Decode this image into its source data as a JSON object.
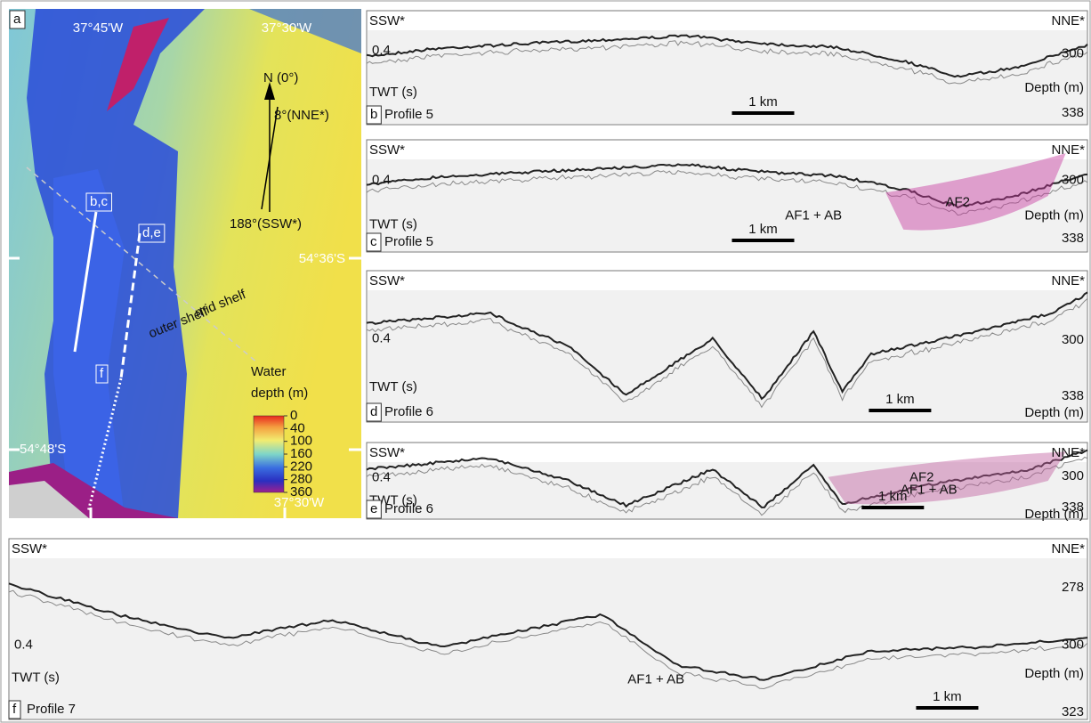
{
  "map": {
    "panel": "a",
    "lon_top": [
      "37°45'W",
      "37°30'W"
    ],
    "north": "N (0°)",
    "nne": "8°(NNE*)",
    "ssw": "188°(SSW*)",
    "track_labels": [
      "b,c",
      "d,e",
      "f"
    ],
    "lat": [
      "54°36'S",
      "54°48'S"
    ],
    "zones": [
      "mid shelf",
      "outer shelf"
    ],
    "legend": {
      "title": [
        "Water",
        "depth (m)"
      ],
      "ticks": [
        0,
        40,
        100,
        160,
        220,
        280,
        360
      ]
    },
    "lon_bottom": "37°30'W"
  },
  "profiles": [
    {
      "panel": "b",
      "name": "Profile 5",
      "left": "SSW*",
      "right": "NNE*",
      "twt": 0.4,
      "twt_label": "TWT (s)",
      "depths": [
        300,
        338
      ],
      "depth_label": "Depth (m)",
      "scale": "1 km",
      "notes": []
    },
    {
      "panel": "c",
      "name": "Profile 5",
      "left": "SSW*",
      "right": "NNE*",
      "twt": 0.4,
      "twt_label": "TWT (s)",
      "depths": [
        300,
        338
      ],
      "depth_label": "Depth (m)",
      "scale": "1 km",
      "notes": [
        "AF1 + AB",
        "AF2"
      ]
    },
    {
      "panel": "d",
      "name": "Profile 6",
      "left": "SSW*",
      "right": "NNE*",
      "twt": 0.4,
      "twt_label": "TWT (s)",
      "depths": [
        300,
        338
      ],
      "depth_label": "Depth (m)",
      "scale": "1 km",
      "notes": []
    },
    {
      "panel": "e",
      "name": "Profile 6",
      "left": "SSW*",
      "right": "NNE*",
      "twt": 0.4,
      "twt_label": "TWT (s)",
      "depths": [
        300,
        338
      ],
      "depth_label": "Depth (m)",
      "scale": "1 km",
      "notes": [
        "AF2",
        "AF1 + AB"
      ]
    },
    {
      "panel": "f",
      "name": "Profile 7",
      "left": "SSW*",
      "right": "NNE*",
      "twt": 0.4,
      "twt_label": "TWT (s)",
      "depths": [
        278,
        300,
        323
      ],
      "depth_label": "Depth (m)",
      "scale": "1 km",
      "notes": [
        "AF1 + AB"
      ]
    }
  ]
}
